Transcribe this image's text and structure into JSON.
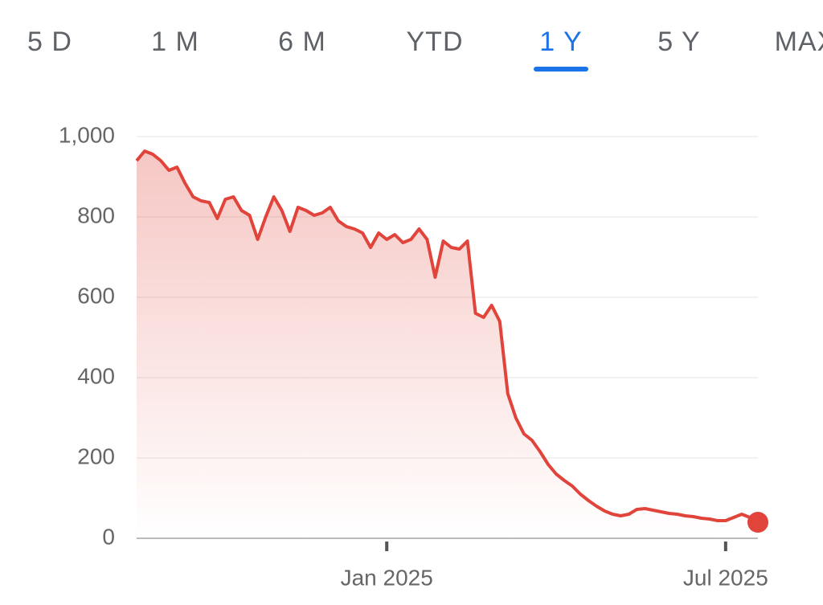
{
  "tabs": [
    "5 D",
    "1 M",
    "6 M",
    "YTD",
    "1 Y",
    "5 Y",
    "MAX"
  ],
  "selected_tab": 4,
  "chart_data": {
    "type": "line",
    "categories": [
      null,
      null,
      null,
      null,
      null,
      null,
      null,
      null,
      null,
      null,
      null,
      null,
      null,
      null,
      null,
      null,
      null,
      null,
      null,
      null,
      null,
      null,
      null,
      null,
      null,
      null,
      null,
      null,
      null,
      null,
      null,
      "Jan 2025",
      null,
      null,
      null,
      null,
      null,
      null,
      null,
      null,
      null,
      null,
      null,
      null,
      null,
      null,
      null,
      null,
      null,
      null,
      null,
      null,
      null,
      null,
      null,
      null,
      null,
      null,
      null,
      null,
      null,
      null,
      null,
      null,
      null,
      null,
      null,
      null,
      null,
      null,
      null,
      null,
      null,
      "Jul 2025",
      null,
      null,
      null,
      null
    ],
    "series": [
      {
        "color": "#e0443a",
        "values": [
          940,
          964,
          956,
          940,
          916,
          924,
          884,
          850,
          840,
          836,
          796,
          844,
          850,
          816,
          804,
          744,
          800,
          850,
          816,
          764,
          824,
          816,
          804,
          810,
          824,
          790,
          776,
          770,
          760,
          724,
          760,
          744,
          756,
          736,
          744,
          770,
          744,
          650,
          740,
          724,
          720,
          740,
          560,
          550,
          580,
          540,
          360,
          300,
          260,
          244,
          216,
          184,
          160,
          144,
          130,
          110,
          94,
          80,
          68,
          60,
          56,
          60,
          72,
          74,
          70,
          66,
          62,
          60,
          56,
          54,
          50,
          48,
          44,
          44,
          52,
          60,
          52,
          40
        ]
      }
    ],
    "ylim": [
      0,
      1000
    ],
    "yticks": [
      0,
      200,
      400,
      600,
      800,
      {
        "value": 1000,
        "label": "1,000"
      }
    ],
    "grid": true
  }
}
